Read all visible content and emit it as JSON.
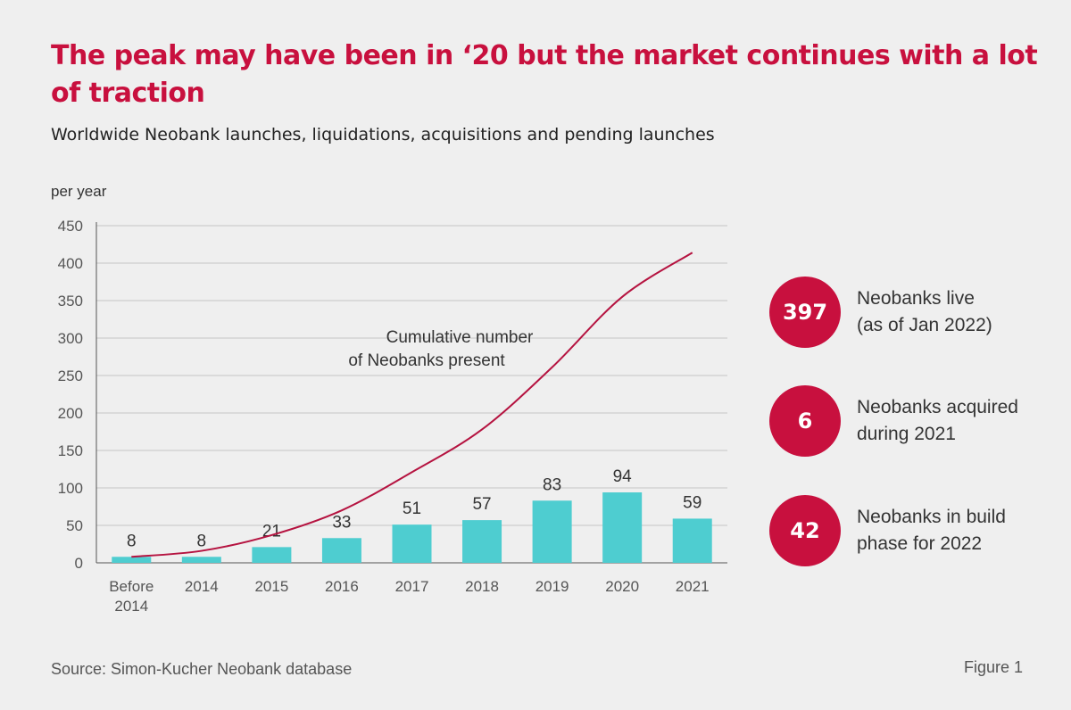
{
  "header": {
    "title": "The peak may have been in ‘20 but the market continues with a lot of traction",
    "subtitle": "Worldwide Neobank launches, liquidations, acquisitions and pending launches"
  },
  "chart_data": {
    "type": "bar",
    "categories": [
      [
        "Before",
        "2014"
      ],
      [
        "2014"
      ],
      [
        "2015"
      ],
      [
        "2016"
      ],
      [
        "2017"
      ],
      [
        "2018"
      ],
      [
        "2019"
      ],
      [
        "2020"
      ],
      [
        "2021"
      ]
    ],
    "series": [
      {
        "name": "Neobank launches per year",
        "type": "bar",
        "color": "#4ecdd0",
        "values": [
          8,
          8,
          21,
          33,
          51,
          57,
          83,
          94,
          59
        ],
        "data_labels": [
          "8",
          "8",
          "21",
          "33",
          "51",
          "57",
          "83",
          "94",
          "59"
        ]
      },
      {
        "name": "Cumulative number of Neobanks present",
        "type": "line",
        "color": "#b51340",
        "values": [
          8,
          16,
          37,
          70,
          121,
          178,
          261,
          355,
          414
        ]
      }
    ],
    "annotation": [
      "Cumulative number",
      "of Neobanks present"
    ],
    "ylabel": "per year",
    "ylim": [
      0,
      450
    ],
    "yticks": [
      0,
      50,
      100,
      150,
      200,
      250,
      300,
      350,
      400,
      450
    ],
    "ytick_labels": [
      "0",
      "50",
      "100",
      "150",
      "200",
      "250",
      "300",
      "350",
      "400",
      "450"
    ],
    "grid": true
  },
  "stats": [
    {
      "value": "397",
      "line1": "Neobanks live",
      "line2": "(as of Jan 2022)"
    },
    {
      "value": "6",
      "line1": "Neobanks acquired",
      "line2": "during 2021"
    },
    {
      "value": "42",
      "line1": "Neobanks in build",
      "line2": "phase for 2022"
    }
  ],
  "footer": {
    "source": "Source: Simon-Kucher Neobank database",
    "figure": "Figure 1"
  },
  "colors": {
    "accent": "#c8103e",
    "bar": "#4ecdd0",
    "line": "#b51340"
  }
}
